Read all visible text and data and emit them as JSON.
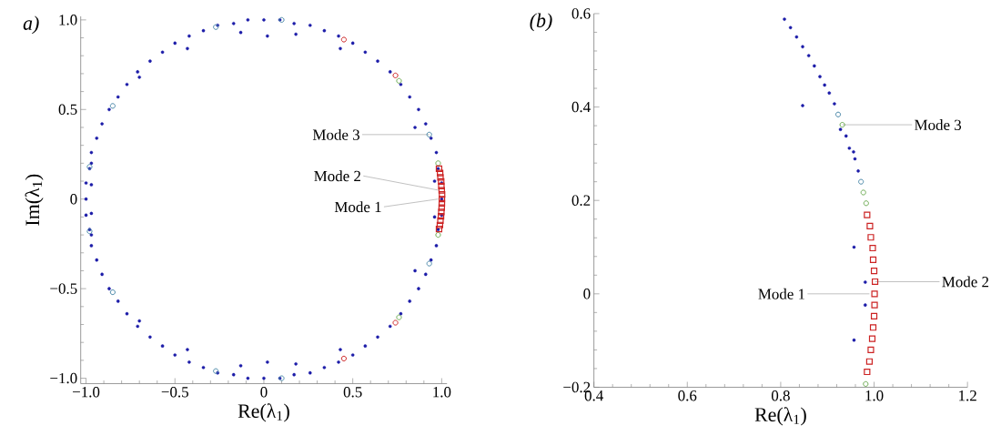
{
  "chart_data": [
    {
      "type": "scatter",
      "title": "a)",
      "xlabel": "Re(λ$_{1}$)",
      "ylabel": "Im(λ$_{1}$)",
      "xlim": [
        -1.03,
        1.03
      ],
      "ylim": [
        -1.03,
        1.02
      ],
      "xticks": [
        {
          "value": -1,
          "label": "−1.0"
        },
        {
          "value": -0.5,
          "label": "−0.5"
        },
        0,
        {
          "value": 0.5,
          "label": "0.5"
        },
        {
          "value": 1,
          "label": "1.0"
        }
      ],
      "yticks": [
        {
          "value": -1,
          "label": "−1.0"
        },
        {
          "value": -0.5,
          "label": "−0.5"
        },
        0,
        {
          "value": 0.5,
          "label": "0.5"
        },
        {
          "value": 1,
          "label": "1.0"
        }
      ],
      "series": [
        {
          "color": "#1c1ca8",
          "marker": "circle",
          "x": [
            1.0,
            1.0,
            0.98,
            0.97,
            0.94,
            0.91,
            0.87,
            0.82,
            0.77,
            0.71,
            0.64,
            0.57,
            0.5,
            0.42,
            0.34,
            0.26,
            0.17,
            0.09,
            0.0,
            -0.09,
            -0.17,
            -0.26,
            -0.34,
            -0.42,
            -0.5,
            -0.57,
            -0.64,
            -0.71,
            -0.77,
            -0.82,
            -0.87,
            -0.91,
            -0.94,
            -0.97,
            -0.98,
            -1.0,
            -1.0,
            -1.0,
            -0.98,
            -0.97,
            -0.94,
            -0.91,
            -0.87,
            -0.82,
            -0.77,
            -0.71,
            -0.64,
            -0.57,
            -0.5,
            -0.42,
            -0.34,
            -0.26,
            -0.17,
            -0.09,
            0.0,
            0.09,
            0.17,
            0.26,
            0.34,
            0.42,
            0.5,
            0.57,
            0.64,
            0.71,
            0.77,
            0.82,
            0.87,
            0.91,
            0.94,
            0.97,
            0.98,
            1.0,
            -0.43,
            -0.13,
            0.02,
            0.18,
            0.43,
            0.85,
            -0.43,
            -0.13,
            0.02,
            0.18,
            0.43,
            0.85,
            0.96,
            0.96,
            -0.97,
            -0.97,
            -0.97,
            -0.97,
            -0.7,
            -0.7
          ],
          "values": [
            0.0,
            0.09,
            0.17,
            0.26,
            0.34,
            0.42,
            0.5,
            0.57,
            0.64,
            0.71,
            0.77,
            0.82,
            0.87,
            0.91,
            0.94,
            0.97,
            0.98,
            1.0,
            1.0,
            1.0,
            0.98,
            0.97,
            0.94,
            0.91,
            0.87,
            0.82,
            0.77,
            0.71,
            0.64,
            0.57,
            0.5,
            0.42,
            0.34,
            0.26,
            0.17,
            0.09,
            0.0,
            -0.09,
            -0.17,
            -0.26,
            -0.34,
            -0.42,
            -0.5,
            -0.57,
            -0.64,
            -0.71,
            -0.77,
            -0.82,
            -0.87,
            -0.91,
            -0.94,
            -0.97,
            -0.98,
            -1.0,
            -1.0,
            -1.0,
            -0.98,
            -0.97,
            -0.94,
            -0.91,
            -0.87,
            -0.82,
            -0.77,
            -0.71,
            -0.64,
            -0.57,
            -0.5,
            -0.42,
            -0.34,
            -0.26,
            -0.17,
            -0.09,
            0.84,
            0.93,
            0.91,
            0.92,
            0.84,
            0.4,
            -0.84,
            -0.93,
            -0.91,
            -0.92,
            -0.84,
            -0.4,
            0.1,
            -0.1,
            0.2,
            0.08,
            -0.08,
            -0.2,
            0.68,
            -0.68
          ]
        },
        {
          "color": "#4a88a8",
          "marker": "circle",
          "x": [
            0.1,
            -0.27,
            0.1,
            -0.27,
            -0.85,
            -0.85,
            -0.98,
            -0.98,
            0.93,
            0.93
          ],
          "values": [
            1.0,
            0.96,
            -1.0,
            -0.96,
            0.52,
            -0.52,
            0.18,
            -0.18,
            0.36,
            -0.36
          ]
        },
        {
          "color": "#6aaa50",
          "marker": "circle",
          "x": [
            0.76,
            0.76,
            0.98,
            0.98
          ],
          "values": [
            0.66,
            -0.66,
            0.2,
            -0.2
          ]
        },
        {
          "color": "#cc2222",
          "marker": "circle",
          "x": [
            0.45,
            0.45,
            0.74,
            0.74
          ],
          "values": [
            0.89,
            -0.89,
            0.69,
            -0.69
          ]
        },
        {
          "color": "#cc2222",
          "marker": "square",
          "x": [
            0.985,
            0.991,
            0.993,
            0.997,
            0.998,
            1.0,
            1.002,
            1.001,
            1.001,
            1.0,
            0.998,
            0.996,
            0.993,
            0.99,
            0.985
          ],
          "values": [
            0.169,
            0.145,
            0.121,
            0.098,
            0.073,
            0.049,
            0.026,
            0.0,
            -0.024,
            -0.048,
            -0.072,
            -0.096,
            -0.12,
            -0.145,
            -0.167
          ]
        }
      ],
      "annotations": [
        {
          "text": "Mode 3",
          "x": 0.93,
          "y": 0.36
        },
        {
          "text": "Mode 2",
          "x": 0.98,
          "y": 0.05
        },
        {
          "text": "Mode 1",
          "x": 0.98,
          "y": 0.0
        }
      ]
    },
    {
      "type": "scatter",
      "title": "(b)",
      "xlabel": "Re(λ$_{1}$)",
      "xlim": [
        0.4,
        1.2
      ],
      "ylim": [
        -0.2,
        0.6
      ],
      "xticks": [
        0.4,
        0.6,
        0.8,
        {
          "value": 1,
          "label": "1.0"
        },
        1.2
      ],
      "yticks": [
        {
          "value": -0.2,
          "label": "−0.2"
        },
        0,
        0.2,
        0.4,
        0.6
      ],
      "series": [
        {
          "color": "#1c1ca8",
          "marker": "circle",
          "x": [
            0.808,
            0.821,
            0.834,
            0.847,
            0.86,
            0.872,
            0.884,
            0.894,
            0.904,
            0.915,
            0.847,
            0.928,
            0.94,
            0.947,
            0.956,
            0.959,
            0.966,
            0.957,
            0.981,
            0.981,
            0.957
          ],
          "values": [
            0.588,
            0.57,
            0.55,
            0.529,
            0.51,
            0.488,
            0.465,
            0.447,
            0.43,
            0.407,
            0.403,
            0.352,
            0.338,
            0.312,
            0.304,
            0.289,
            0.263,
            0.1,
            0.025,
            -0.024,
            -0.099
          ]
        },
        {
          "color": "#4a88a8",
          "marker": "circle",
          "x": [
            0.923,
            0.972
          ],
          "values": [
            0.384,
            0.24
          ]
        },
        {
          "color": "#6aaa50",
          "marker": "circle",
          "x": [
            0.932,
            0.977,
            0.983,
            0.982
          ],
          "values": [
            0.362,
            0.217,
            0.194,
            -0.193
          ]
        },
        {
          "color": "#cc2222",
          "marker": "square",
          "x": [
            0.985,
            0.991,
            0.993,
            0.997,
            0.998,
            1.0,
            1.002,
            1.001,
            1.001,
            1.0,
            0.998,
            0.996,
            0.993,
            0.99,
            0.985
          ],
          "values": [
            0.169,
            0.145,
            0.121,
            0.098,
            0.073,
            0.049,
            0.026,
            0.0,
            -0.024,
            -0.048,
            -0.072,
            -0.096,
            -0.12,
            -0.145,
            -0.167
          ]
        }
      ],
      "annotations": [
        {
          "text": "Mode 3",
          "x": 0.932,
          "y": 0.362
        },
        {
          "text": "Mode 2",
          "x": 1.002,
          "y": 0.026
        },
        {
          "text": "Mode 1",
          "x": 0.99,
          "y": 0.0
        }
      ]
    }
  ]
}
